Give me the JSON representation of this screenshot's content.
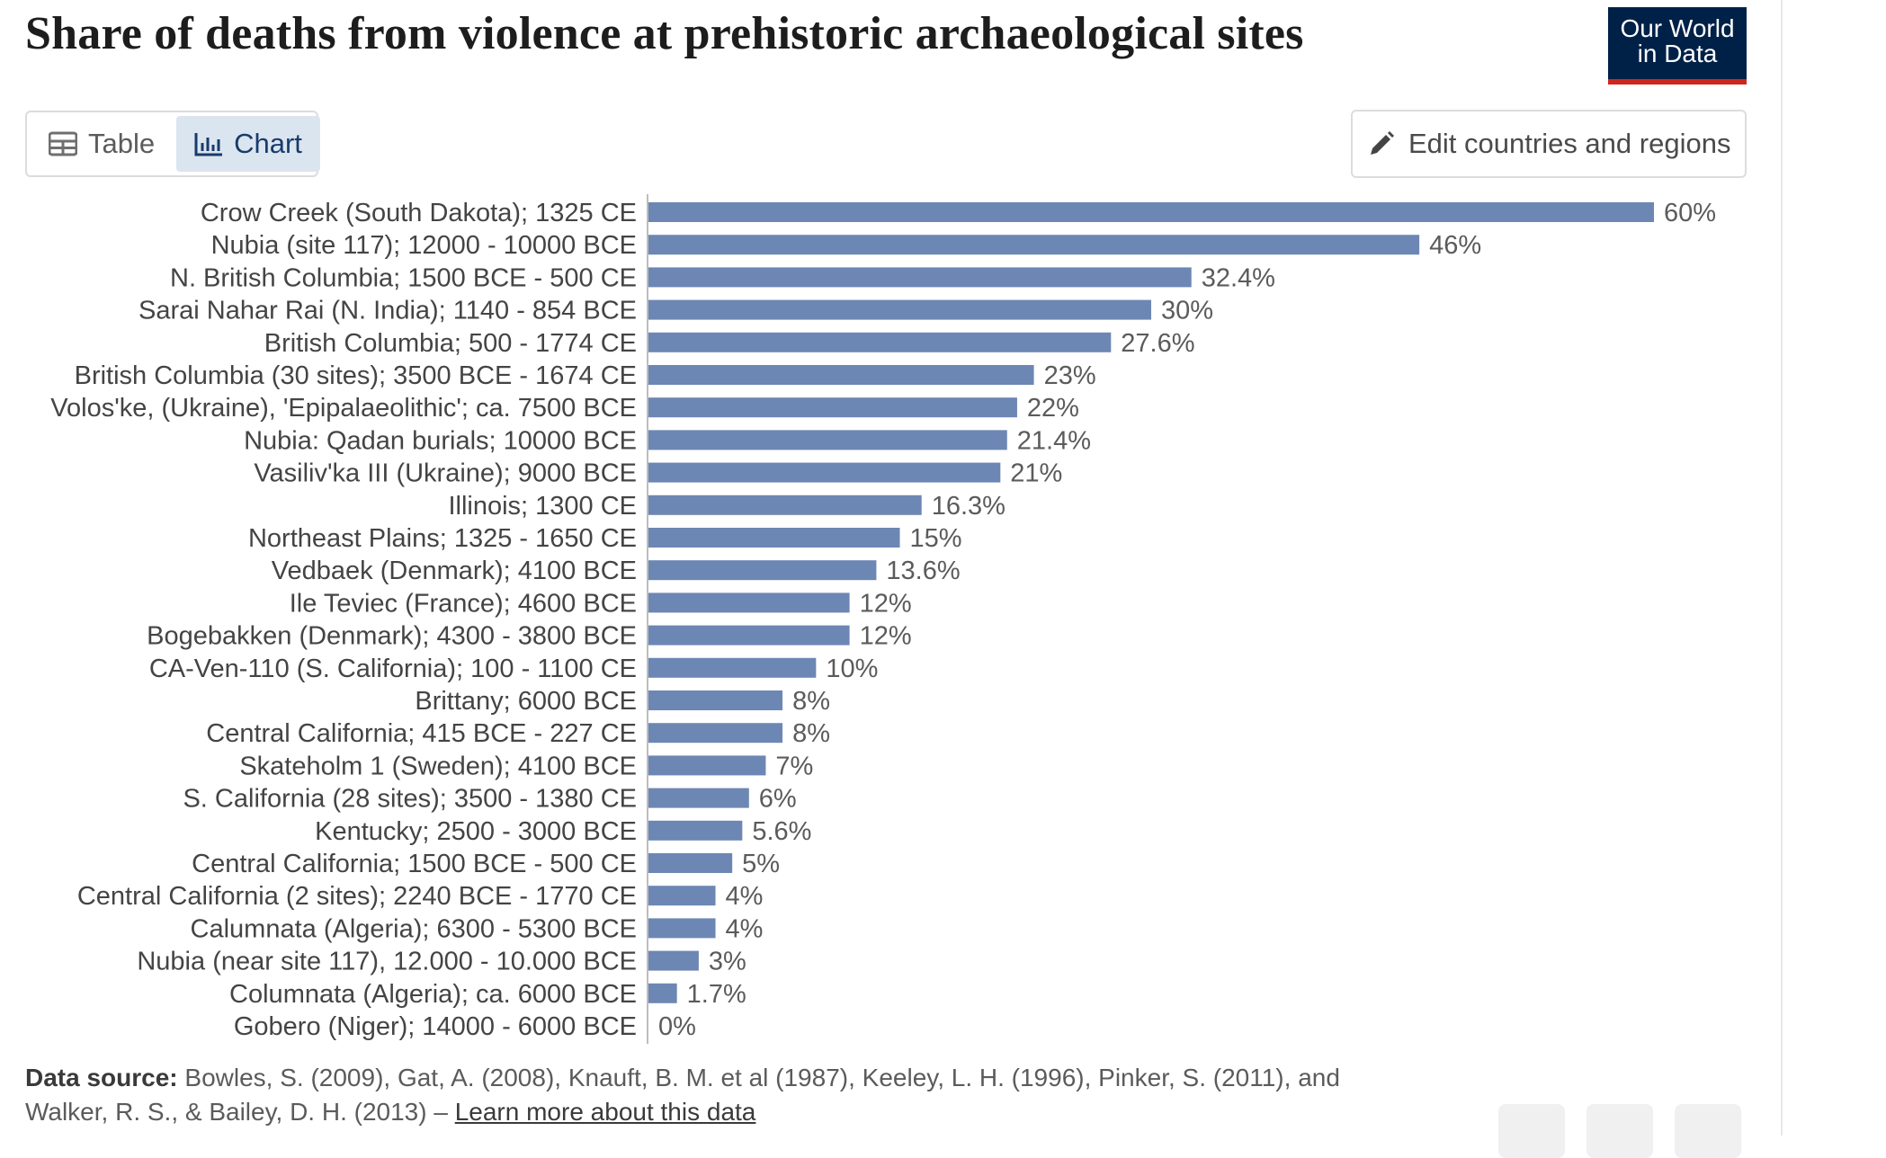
{
  "header": {
    "title": "Share of deaths from violence at prehistoric archaeological sites",
    "logo_line1": "Our World",
    "logo_line2": "in Data"
  },
  "tabs": {
    "table_label": "Table",
    "chart_label": "Chart",
    "active": "chart"
  },
  "toolbar": {
    "edit_label": "Edit countries and regions"
  },
  "chart_data": {
    "type": "bar",
    "orientation": "horizontal",
    "title": "Share of deaths from violence at prehistoric archaeological sites",
    "unit": "%",
    "xlim": [
      0,
      60
    ],
    "bar_color": "#6d87b4",
    "categories": [
      "Crow Creek (South Dakota); 1325 CE",
      "Nubia (site 117); 12000 - 10000 BCE",
      "N. British Columbia; 1500 BCE - 500 CE",
      "Sarai Nahar Rai (N. India); 1140 - 854 BCE",
      "British Columbia; 500 - 1774 CE",
      "British Columbia (30 sites); 3500 BCE - 1674 CE",
      "Volos'ke, (Ukraine), 'Epipalaeolithic'; ca. 7500 BCE",
      "Nubia: Qadan burials; 10000 BCE",
      "Vasiliv'ka III (Ukraine); 9000 BCE",
      "Illinois; 1300 CE",
      "Northeast Plains; 1325 - 1650 CE",
      "Vedbaek (Denmark); 4100 BCE",
      "Ile Teviec (France); 4600 BCE",
      "Bogebakken (Denmark); 4300 - 3800 BCE",
      "CA-Ven-110 (S. California); 100 - 1100 CE",
      "Brittany; 6000 BCE",
      "Central California; 415 BCE - 227 CE",
      "Skateholm 1 (Sweden); 4100 BCE",
      "S. California (28 sites); 3500 - 1380 CE",
      "Kentucky; 2500 - 3000 BCE",
      "Central California; 1500 BCE - 500 CE",
      "Central California (2 sites); 2240 BCE - 1770 CE",
      "Calumnata (Algeria); 6300 - 5300 BCE",
      "Nubia (near site 117), 12.000 - 10.000 BCE",
      "Columnata (Algeria); ca. 6000 BCE",
      "Gobero (Niger); 14000 - 6000 BCE"
    ],
    "values": [
      60,
      46,
      32.4,
      30,
      27.6,
      23,
      22,
      21.4,
      21,
      16.3,
      15,
      13.6,
      12,
      12,
      10,
      8,
      8,
      7,
      6,
      5.6,
      5,
      4,
      4,
      3,
      1.7,
      0
    ],
    "value_labels": [
      "60%",
      "46%",
      "32.4%",
      "30%",
      "27.6%",
      "23%",
      "22%",
      "21.4%",
      "21%",
      "16.3%",
      "15%",
      "13.6%",
      "12%",
      "12%",
      "10%",
      "8%",
      "8%",
      "7%",
      "6%",
      "5.6%",
      "5%",
      "4%",
      "4%",
      "3%",
      "1.7%",
      "0%"
    ]
  },
  "source": {
    "label": "Data source:",
    "text": "Bowles, S. (2009), Gat, A. (2008), Knauft, B. M. et al (1987), Keeley, L. H. (1996), Pinker, S. (2011), and Walker, R. S., & Bailey, D. H. (2013) –",
    "link": "Learn more about this data"
  }
}
